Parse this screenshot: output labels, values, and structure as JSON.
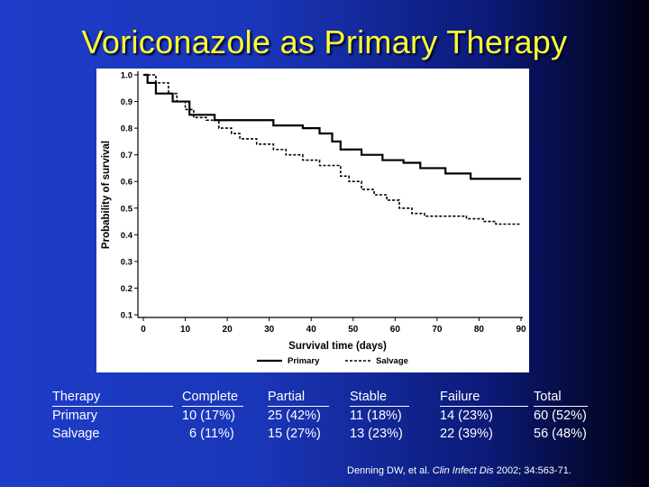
{
  "title": "Voriconazole as Primary Therapy",
  "chart_data": {
    "type": "line",
    "step": true,
    "xlabel": "Survival time (days)",
    "ylabel": "Probability of survival",
    "xlim": [
      0,
      90
    ],
    "ylim": [
      0.1,
      1.0
    ],
    "x_ticks": [
      0,
      10,
      20,
      30,
      40,
      50,
      60,
      70,
      80,
      90
    ],
    "y_ticks": [
      1.0,
      0.9,
      0.8,
      0.7,
      0.6,
      0.5,
      0.4,
      0.3,
      0.2,
      0.1
    ],
    "x_tick_labels": [
      "0",
      "10",
      "20",
      "30",
      "40",
      "50",
      "60",
      "70",
      "80",
      "90"
    ],
    "y_tick_labels": [
      "1.0",
      "0.9",
      "0.8",
      "0.7",
      "0.6",
      "0.5",
      "0.4",
      "0.3",
      "0.2",
      "0.1"
    ],
    "legend": "bottom",
    "series": [
      {
        "name": "Primary",
        "style": "solid",
        "points": [
          [
            0,
            1.0
          ],
          [
            1,
            0.97
          ],
          [
            3,
            0.93
          ],
          [
            7,
            0.9
          ],
          [
            11,
            0.85
          ],
          [
            17,
            0.83
          ],
          [
            25,
            0.83
          ],
          [
            31,
            0.81
          ],
          [
            38,
            0.8
          ],
          [
            42,
            0.78
          ],
          [
            45,
            0.75
          ],
          [
            47,
            0.72
          ],
          [
            52,
            0.7
          ],
          [
            57,
            0.68
          ],
          [
            62,
            0.67
          ],
          [
            66,
            0.65
          ],
          [
            72,
            0.63
          ],
          [
            78,
            0.61
          ],
          [
            90,
            0.61
          ]
        ]
      },
      {
        "name": "Salvage",
        "style": "dashed",
        "points": [
          [
            0,
            1.0
          ],
          [
            3,
            0.97
          ],
          [
            6,
            0.93
          ],
          [
            8,
            0.9
          ],
          [
            10,
            0.87
          ],
          [
            12,
            0.84
          ],
          [
            15,
            0.83
          ],
          [
            18,
            0.8
          ],
          [
            21,
            0.78
          ],
          [
            23,
            0.76
          ],
          [
            27,
            0.74
          ],
          [
            31,
            0.72
          ],
          [
            34,
            0.7
          ],
          [
            38,
            0.68
          ],
          [
            42,
            0.66
          ],
          [
            47,
            0.62
          ],
          [
            49,
            0.6
          ],
          [
            52,
            0.57
          ],
          [
            55,
            0.55
          ],
          [
            58,
            0.53
          ],
          [
            61,
            0.5
          ],
          [
            64,
            0.48
          ],
          [
            67,
            0.47
          ],
          [
            73,
            0.47
          ],
          [
            77,
            0.46
          ],
          [
            81,
            0.45
          ],
          [
            84,
            0.44
          ],
          [
            90,
            0.44
          ]
        ]
      }
    ]
  },
  "stats": {
    "columns": [
      {
        "header": "Therapy",
        "rows": [
          "Primary",
          "Salvage"
        ]
      },
      {
        "header": "Complete",
        "rows": [
          "10 (17%)",
          "  6 (11%)"
        ]
      },
      {
        "header": "Partial",
        "rows": [
          "25 (42%)",
          "15 (27%)"
        ]
      },
      {
        "header": "Stable",
        "rows": [
          "11 (18%)",
          "13 (23%)"
        ]
      },
      {
        "header": "Failure",
        "rows": [
          "14 (23%)",
          "22 (39%)"
        ]
      },
      {
        "header": "Total",
        "rows": [
          "60 (52%)",
          "56 (48%)"
        ]
      }
    ]
  },
  "citation": {
    "authors": "Denning DW, et al.",
    "journal": "Clin Infect Dis",
    "ref": "2002; 34:563-71."
  },
  "colors": {
    "title": "#ffff33",
    "text": "#ffffff",
    "plot_line": "#000000"
  }
}
